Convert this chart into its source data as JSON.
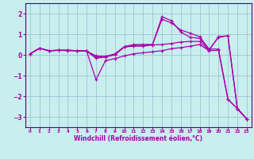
{
  "xlabel": "Windchill (Refroidissement éolien,°C)",
  "bg_color": "#c8eeee",
  "line_color": "#aa00aa",
  "grid_color": "#99bbcc",
  "spine_color": "#660066",
  "xlim": [
    -0.5,
    23.5
  ],
  "ylim": [
    -3.5,
    2.5
  ],
  "yticks": [
    -3,
    -2,
    -1,
    0,
    1,
    2
  ],
  "xticks": [
    0,
    1,
    2,
    3,
    4,
    5,
    6,
    7,
    8,
    9,
    10,
    11,
    12,
    13,
    14,
    15,
    16,
    17,
    18,
    19,
    20,
    21,
    22,
    23
  ],
  "lines": [
    {
      "x": [
        0,
        1,
        2,
        3,
        4,
        5,
        6,
        7,
        8,
        9,
        10,
        11,
        12,
        13,
        14,
        15,
        16,
        17,
        18,
        19,
        20,
        21,
        22,
        23
      ],
      "y": [
        0.05,
        0.32,
        0.2,
        0.22,
        0.2,
        0.2,
        0.18,
        -1.2,
        -0.28,
        -0.18,
        -0.05,
        0.05,
        0.1,
        0.15,
        0.2,
        0.3,
        0.35,
        0.42,
        0.5,
        0.2,
        0.22,
        -2.15,
        -2.6,
        -3.1
      ]
    },
    {
      "x": [
        0,
        1,
        2,
        3,
        4,
        5,
        6,
        7,
        8,
        9,
        10,
        11,
        12,
        13,
        14,
        15,
        16,
        17,
        18,
        19,
        20,
        21,
        22,
        23
      ],
      "y": [
        0.05,
        0.32,
        0.2,
        0.22,
        0.22,
        0.2,
        0.18,
        -0.17,
        -0.1,
        0.0,
        0.38,
        0.45,
        0.47,
        0.5,
        1.72,
        1.55,
        1.2,
        1.05,
        0.88,
        0.28,
        0.28,
        -2.15,
        -2.6,
        -3.1
      ]
    },
    {
      "x": [
        0,
        1,
        2,
        3,
        4,
        5,
        6,
        7,
        8,
        9,
        10,
        11,
        12,
        13,
        14,
        15,
        16,
        17,
        18,
        19,
        20,
        21,
        22,
        23
      ],
      "y": [
        0.05,
        0.32,
        0.2,
        0.22,
        0.22,
        0.2,
        0.18,
        -0.05,
        -0.08,
        0.05,
        0.4,
        0.5,
        0.5,
        0.5,
        1.85,
        1.65,
        1.1,
        0.85,
        0.8,
        0.25,
        0.85,
        0.92,
        -2.6,
        -3.1
      ]
    },
    {
      "x": [
        0,
        1,
        2,
        3,
        4,
        5,
        6,
        7,
        8,
        9,
        10,
        11,
        12,
        13,
        14,
        15,
        16,
        17,
        18,
        19,
        20,
        21,
        22,
        23
      ],
      "y": [
        0.05,
        0.32,
        0.2,
        0.22,
        0.22,
        0.2,
        0.18,
        -0.1,
        -0.08,
        0.02,
        0.38,
        0.42,
        0.42,
        0.48,
        0.5,
        0.55,
        0.62,
        0.65,
        0.65,
        0.22,
        0.88,
        0.92,
        -2.6,
        -3.1
      ]
    }
  ]
}
